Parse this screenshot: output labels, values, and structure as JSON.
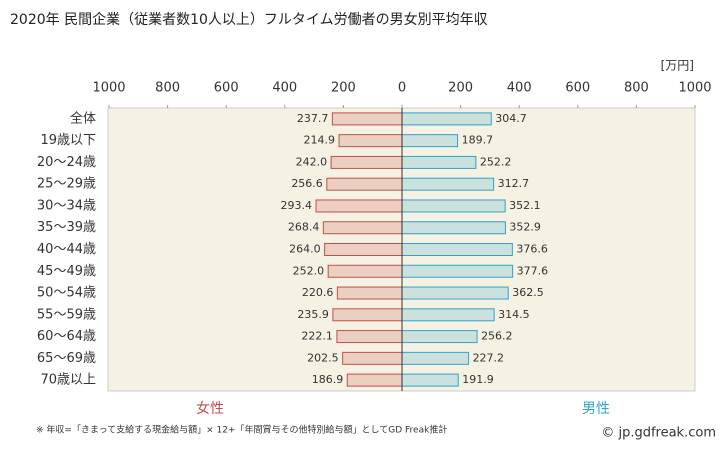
{
  "chart_data": {
    "type": "butterfly-bar",
    "title": "2020年 民間企業（従業者数10人以上）フルタイム労働者の男女別平均年収",
    "unit": "[万円]",
    "categories": [
      "全体",
      "19歳以下",
      "20～24歳",
      "25～29歳",
      "30～34歳",
      "35～39歳",
      "40～44歳",
      "45～49歳",
      "50～54歳",
      "55～59歳",
      "60～64歳",
      "65～69歳",
      "70歳以上"
    ],
    "series": [
      {
        "name": "女性",
        "color": "#c0504d",
        "side": "left",
        "values": [
          237.7,
          214.9,
          242.0,
          256.6,
          293.4,
          268.4,
          264.0,
          252.0,
          220.6,
          235.9,
          222.1,
          202.5,
          186.9
        ],
        "value_labels": [
          "237.7",
          "214.9",
          "242.0",
          "256.6",
          "293.4",
          "268.4",
          "264.0",
          "252.0",
          "220.6",
          "235.9",
          "222.1",
          "202.5",
          "186.9"
        ]
      },
      {
        "name": "男性",
        "color": "#31a2c9",
        "side": "right",
        "values": [
          304.7,
          189.7,
          252.2,
          312.7,
          352.1,
          352.9,
          376.6,
          377.6,
          362.5,
          314.5,
          256.2,
          227.2,
          191.9
        ],
        "value_labels": [
          "304.7",
          "189.7",
          "252.2",
          "312.7",
          "352.1",
          "352.9",
          "376.6",
          "377.6",
          "362.5",
          "314.5",
          "256.2",
          "227.2",
          "191.9"
        ]
      }
    ],
    "xlim": [
      0,
      1000
    ],
    "xticks": [
      0,
      200,
      400,
      600,
      800,
      1000
    ],
    "footnote": "※ 年収=「きまって支給する現金給与額」× 12+「年間賞与その他特別給与額」としてGD Freak推計",
    "copyright": "© jp.gdfreak.com"
  }
}
